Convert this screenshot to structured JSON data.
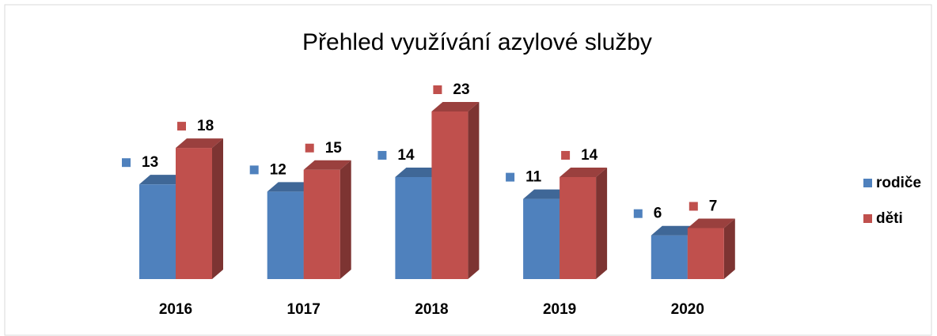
{
  "chart_data": {
    "type": "bar3d",
    "title": "Přehled využívání azylové služby",
    "categories": [
      "2016",
      "1017",
      "2018",
      "2019",
      "2020"
    ],
    "series": [
      {
        "name": "rodiče",
        "color": "#4f81bd",
        "values": [
          13,
          12,
          14,
          11,
          6
        ]
      },
      {
        "name": "děti",
        "color": "#c0504d",
        "values": [
          18,
          15,
          23,
          14,
          7
        ]
      }
    ],
    "legend": "right"
  }
}
